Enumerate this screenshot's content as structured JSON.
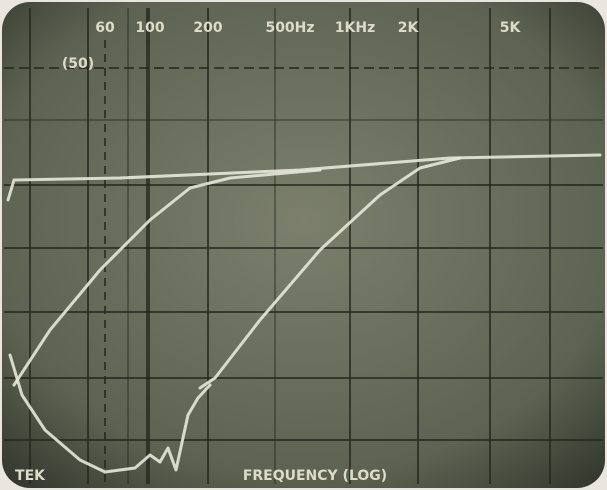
{
  "screen": {
    "scale_labels": [
      "60",
      "100",
      "200",
      "500Hz",
      "1KHz",
      "2K",
      "5K"
    ],
    "bracket_label": "(50)",
    "axis_label": "FREQUENCY (LOG)",
    "brand": "TEK"
  }
}
